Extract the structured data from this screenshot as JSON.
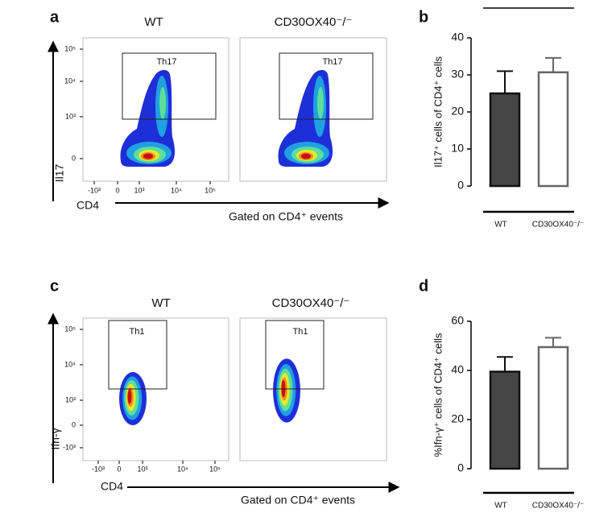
{
  "flow_panels": [
    {
      "letter": "a",
      "y_label": "Il17",
      "x_label": "CD4",
      "gating_note": "Gated on CD4⁺ events",
      "plots": [
        {
          "title": "WT",
          "gate": "Th17"
        },
        {
          "title": "CD30OX40⁻/⁻",
          "gate": "Th17"
        }
      ],
      "y_tick_labels": [
        "10⁵",
        "10⁴",
        "10³",
        "0"
      ],
      "x_tick_labels": [
        "-10³",
        "0",
        "10³",
        "10⁴",
        "10⁵"
      ]
    },
    {
      "letter": "c",
      "y_label": "Ifn-γ",
      "x_label": "CD4",
      "gating_note": "Gated on CD4⁺ events",
      "plots": [
        {
          "title": "WT",
          "gate": "Th1"
        },
        {
          "title": "CD30OX40⁻/⁻",
          "gate": "Th1"
        }
      ],
      "y_tick_labels": [
        "10⁵",
        "10⁴",
        "10³",
        "0",
        "-10³"
      ],
      "x_tick_labels": [
        "-10³",
        "0",
        "10³",
        "10⁴",
        "10⁵"
      ]
    }
  ],
  "chart_data": [
    {
      "type": "bar",
      "panel_label": "b",
      "y_label": "Il17⁺ cells of CD4⁺ cells",
      "categories": [
        "WT",
        "CD30OX40⁻/⁻"
      ],
      "values": [
        25,
        30.7
      ],
      "errors": [
        6,
        3.9
      ],
      "colors": [
        "#454545",
        "#ffffff"
      ],
      "edge_colors": [
        "#111111",
        "#666666"
      ],
      "ylim": [
        0,
        40
      ],
      "yticks": [
        0,
        10,
        20,
        30,
        40
      ]
    },
    {
      "type": "bar",
      "panel_label": "d",
      "y_label": "%Ifn-γ⁺ cells of CD4⁺ cells",
      "categories": [
        "WT",
        "CD30OX40⁻/⁻"
      ],
      "values": [
        39.5,
        49.5
      ],
      "errors": [
        6,
        3.8
      ],
      "colors": [
        "#454545",
        "#ffffff"
      ],
      "edge_colors": [
        "#111111",
        "#666666"
      ],
      "ylim": [
        0,
        60
      ],
      "yticks": [
        0,
        20,
        40,
        60
      ]
    }
  ]
}
